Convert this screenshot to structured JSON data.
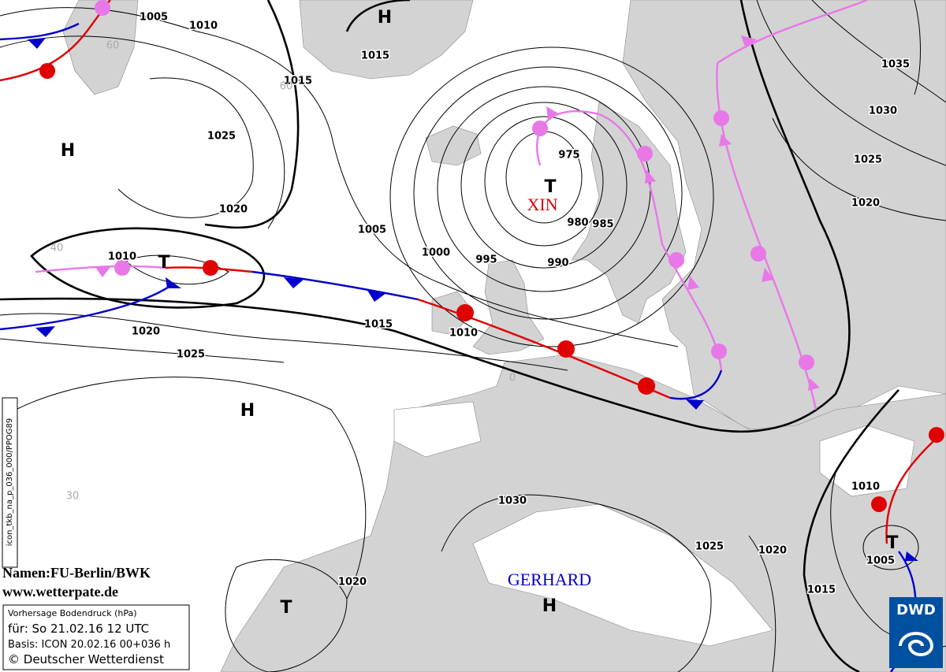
{
  "isobar_labels": [
    "1005",
    "1010",
    "1015",
    "1015",
    "1025",
    "1020",
    "1010",
    "1020",
    "1025",
    "1015",
    "1005",
    "1000",
    "995",
    "975",
    "980",
    "985",
    "990",
    "1010",
    "1035",
    "1030",
    "1025",
    "1020",
    "1030",
    "1025",
    "1020",
    "1010",
    "1005",
    "1015",
    "1020"
  ],
  "centers": [
    "H",
    "H",
    "T",
    "T",
    "H",
    "T",
    "H",
    "T"
  ],
  "storm_names": {
    "low": "XIN",
    "high": "GERHARD"
  },
  "grid_labels": [
    "60",
    "60",
    "40",
    "30",
    "0"
  ],
  "credits": {
    "names": "Namen:FU-Berlin/BWK",
    "website": "www.wetterpate.de",
    "product_code": "icon_tkb_na_p_036_000/PPOG89"
  },
  "info_box": {
    "product": "Vorhersage Bodendruck (hPa)",
    "valid": "für:  So 21.02.16  12 UTC",
    "basis": "Basis: ICON  20.02.16 00+036 h",
    "copyright": "© Deutscher Wetterdienst"
  },
  "logo": "DWD"
}
